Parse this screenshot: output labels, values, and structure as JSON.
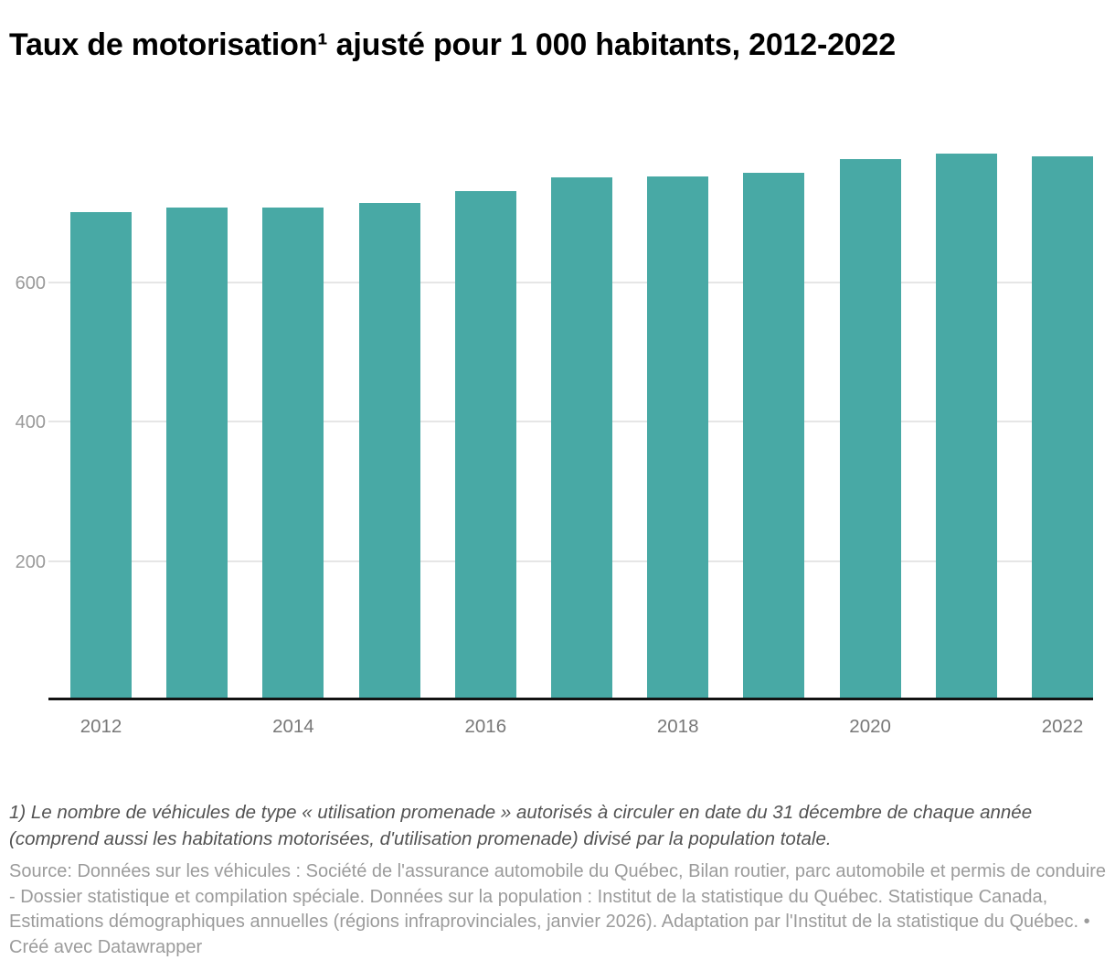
{
  "header": {
    "title": "Taux de motorisation¹ ajusté pour 1 000 habitants, 2012-2022"
  },
  "chart_data": {
    "type": "bar",
    "title": "Taux de motorisation ajusté pour 1 000 habitants, 2012-2022",
    "categories": [
      "2012",
      "2013",
      "2014",
      "2015",
      "2016",
      "2017",
      "2018",
      "2019",
      "2020",
      "2021",
      "2022"
    ],
    "values": [
      701,
      707,
      707,
      714,
      730,
      750,
      752,
      757,
      777,
      784,
      780
    ],
    "xlabel": "",
    "ylabel": "",
    "ylim": [
      0,
      808
    ],
    "yticks": [
      200,
      400,
      600
    ],
    "xtick_labels": [
      "2012",
      "2014",
      "2016",
      "2018",
      "2020",
      "2022"
    ],
    "xtick_every": 2,
    "grid": true,
    "legend_position": "none",
    "bar_color": "#48a9a5",
    "grid_color": "#e6e6e6",
    "axis_line_color": "#131313",
    "ytick_label_color": "#9a9a9a",
    "xtick_label_color": "#787878"
  },
  "footer": {
    "footnote": "1) Le nombre de véhicules de type « utilisation promenade » autorisés à circuler en date du 31 décembre de chaque année (comprend aussi les habitations motorisées, d'utilisation promenade) divisé par la population totale.",
    "source": "Source: Données sur les véhicules : Société de l'assurance automobile du Québec, Bilan routier, parc automobile et permis de conduire - Dossier statistique et compilation spéciale. Données sur la population : Institut de la statistique du Québec. Statistique Canada, Estimations démographiques annuelles (régions infraprovinciales, janvier 2026). Adaptation par l'Institut de la statistique du Québec.",
    "separator": "•",
    "attribution": "Créé avec Datawrapper"
  }
}
